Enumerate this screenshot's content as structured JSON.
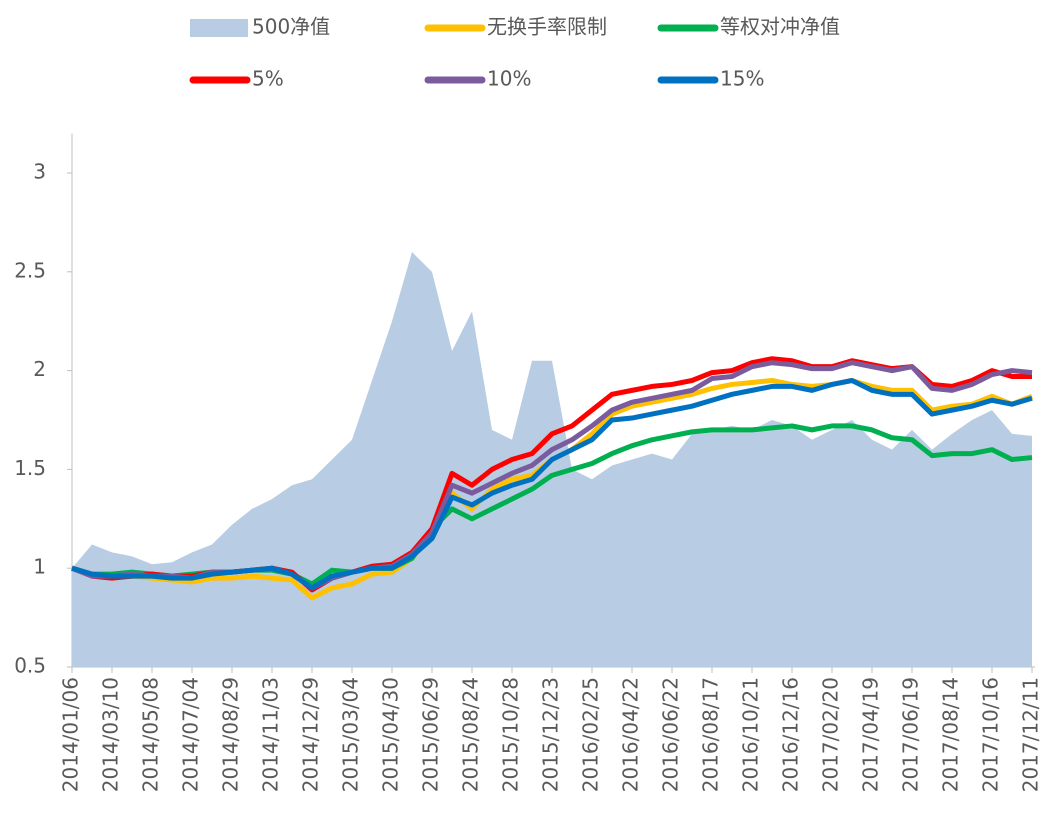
{
  "chart_data": {
    "type": "line",
    "categories": [
      "2014/01/06",
      null,
      "2014/03/10",
      null,
      "2014/05/08",
      null,
      "2014/07/04",
      null,
      "2014/08/29",
      null,
      "2014/11/03",
      null,
      "2014/12/29",
      null,
      "2015/03/04",
      null,
      "2015/04/30",
      null,
      "2015/06/29",
      null,
      "2015/08/24",
      null,
      "2015/10/28",
      null,
      "2015/12/23",
      null,
      "2016/02/25",
      null,
      "2016/04/22",
      null,
      "2016/06/22",
      null,
      "2016/08/17",
      null,
      "2016/10/21",
      null,
      "2016/12/16",
      null,
      "2017/02/20",
      null,
      "2017/04/19",
      null,
      "2017/06/19",
      null,
      "2017/08/14",
      null,
      "2017/10/16",
      null,
      "2017/12/11"
    ],
    "series": [
      {
        "name": "500净值",
        "type": "area",
        "color": "#b8cce4",
        "values": [
          1.0,
          1.12,
          1.08,
          1.06,
          1.02,
          1.03,
          1.08,
          1.12,
          1.22,
          1.3,
          1.35,
          1.42,
          1.45,
          1.55,
          1.65,
          1.95,
          2.25,
          2.6,
          2.5,
          2.1,
          2.3,
          1.7,
          1.65,
          2.05,
          2.05,
          1.5,
          1.45,
          1.52,
          1.55,
          1.58,
          1.55,
          1.68,
          1.7,
          1.72,
          1.7,
          1.75,
          1.72,
          1.65,
          1.7,
          1.75,
          1.65,
          1.6,
          1.7,
          1.6,
          1.68,
          1.75,
          1.8,
          1.68,
          1.67
        ]
      },
      {
        "name": "无换手率限制",
        "color": "#ffc000",
        "values": [
          1.0,
          0.97,
          0.95,
          0.96,
          0.95,
          0.94,
          0.93,
          0.95,
          0.95,
          0.96,
          0.95,
          0.94,
          0.85,
          0.9,
          0.92,
          0.97,
          0.98,
          1.05,
          1.18,
          1.38,
          1.3,
          1.4,
          1.45,
          1.47,
          1.55,
          1.6,
          1.68,
          1.78,
          1.82,
          1.84,
          1.86,
          1.88,
          1.91,
          1.93,
          1.94,
          1.95,
          1.93,
          1.92,
          1.93,
          1.95,
          1.92,
          1.9,
          1.9,
          1.8,
          1.82,
          1.83,
          1.87,
          1.83,
          1.87
        ]
      },
      {
        "name": "等权对冲净值",
        "color": "#00b050",
        "values": [
          1.0,
          0.97,
          0.97,
          0.98,
          0.97,
          0.96,
          0.97,
          0.98,
          0.98,
          0.99,
          0.99,
          0.97,
          0.92,
          0.99,
          0.98,
          1.0,
          1.0,
          1.05,
          1.2,
          1.3,
          1.25,
          1.3,
          1.35,
          1.4,
          1.47,
          1.5,
          1.53,
          1.58,
          1.62,
          1.65,
          1.67,
          1.69,
          1.7,
          1.7,
          1.7,
          1.71,
          1.72,
          1.7,
          1.72,
          1.72,
          1.7,
          1.66,
          1.65,
          1.57,
          1.58,
          1.58,
          1.6,
          1.55,
          1.56
        ]
      },
      {
        "name": "5%",
        "color": "#ff0000",
        "values": [
          1.0,
          0.96,
          0.95,
          0.96,
          0.97,
          0.96,
          0.96,
          0.98,
          0.98,
          0.99,
          1.0,
          0.98,
          0.89,
          0.95,
          0.98,
          1.01,
          1.02,
          1.08,
          1.2,
          1.48,
          1.42,
          1.5,
          1.55,
          1.58,
          1.68,
          1.72,
          1.8,
          1.88,
          1.9,
          1.92,
          1.93,
          1.95,
          1.99,
          2.0,
          2.04,
          2.06,
          2.05,
          2.02,
          2.02,
          2.05,
          2.03,
          2.01,
          2.02,
          1.93,
          1.92,
          1.95,
          2.0,
          1.97,
          1.97
        ]
      },
      {
        "name": "10%",
        "color": "#7a5c9e",
        "values": [
          1.0,
          0.96,
          0.96,
          0.97,
          0.96,
          0.96,
          0.95,
          0.98,
          0.98,
          0.99,
          1.0,
          0.97,
          0.9,
          0.95,
          0.98,
          1.0,
          1.01,
          1.07,
          1.18,
          1.42,
          1.38,
          1.43,
          1.48,
          1.52,
          1.6,
          1.65,
          1.72,
          1.8,
          1.84,
          1.86,
          1.88,
          1.9,
          1.96,
          1.97,
          2.02,
          2.04,
          2.03,
          2.01,
          2.01,
          2.04,
          2.02,
          2.0,
          2.02,
          1.91,
          1.9,
          1.93,
          1.98,
          2.0,
          1.99
        ]
      },
      {
        "name": "15%",
        "color": "#0070c0",
        "values": [
          1.0,
          0.97,
          0.96,
          0.96,
          0.96,
          0.95,
          0.95,
          0.97,
          0.98,
          0.99,
          1.0,
          0.97,
          0.9,
          0.96,
          0.98,
          1.0,
          1.0,
          1.06,
          1.15,
          1.36,
          1.32,
          1.38,
          1.42,
          1.45,
          1.55,
          1.6,
          1.65,
          1.75,
          1.76,
          1.78,
          1.8,
          1.82,
          1.85,
          1.88,
          1.9,
          1.92,
          1.92,
          1.9,
          1.93,
          1.95,
          1.9,
          1.88,
          1.88,
          1.78,
          1.8,
          1.82,
          1.85,
          1.83,
          1.86
        ]
      }
    ],
    "ylim": [
      0.5,
      3.2
    ],
    "yticks": [
      0.5,
      1,
      1.5,
      2,
      2.5,
      3
    ],
    "grid": false
  }
}
